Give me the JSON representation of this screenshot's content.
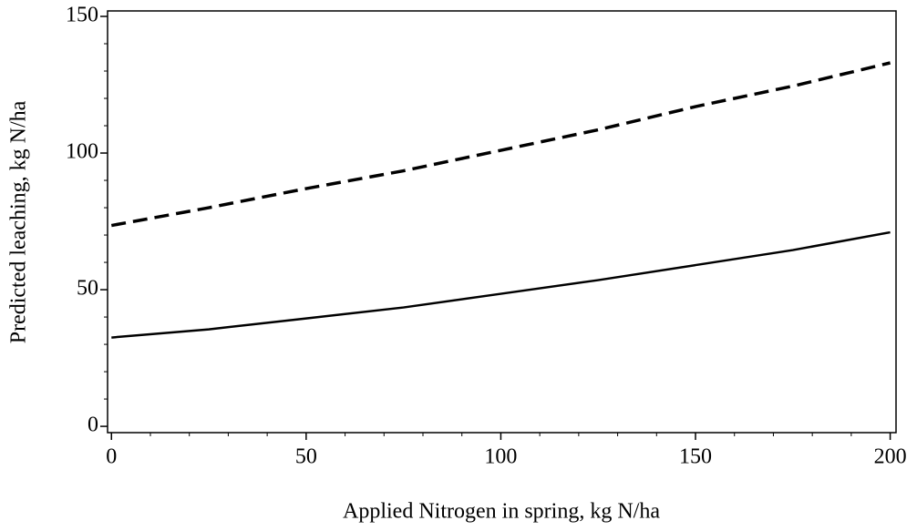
{
  "chart_data": {
    "type": "line",
    "x_label": "Applied Nitrogen in spring, kg N/ha",
    "y_label": "Predicted leaching, kg N/ha",
    "x": [
      0,
      25,
      50,
      75,
      100,
      125,
      150,
      175,
      200
    ],
    "series": [
      {
        "color": "#000000",
        "dash": "solid",
        "values": [
          32.5,
          35.5,
          39.5,
          43.5,
          48.5,
          53.5,
          59,
          64.5,
          71
        ]
      },
      {
        "color": "#000000",
        "dash": "dashed",
        "values": [
          73.5,
          80,
          87,
          93.5,
          101,
          108.5,
          117,
          124.5,
          133
        ]
      }
    ],
    "xlim": [
      -1,
      201.5
    ],
    "ylim": [
      -2.3,
      152
    ],
    "xticks": [
      0,
      50,
      100,
      150,
      200
    ],
    "yticks": [
      0,
      50,
      100,
      150
    ],
    "xminorticks": [
      10,
      20,
      30,
      40,
      60,
      70,
      80,
      90,
      110,
      120,
      130,
      140,
      160,
      170,
      180,
      190
    ],
    "yminorticks": [
      10,
      20,
      30,
      40,
      60,
      70,
      80,
      90,
      110,
      120,
      130,
      140
    ]
  }
}
